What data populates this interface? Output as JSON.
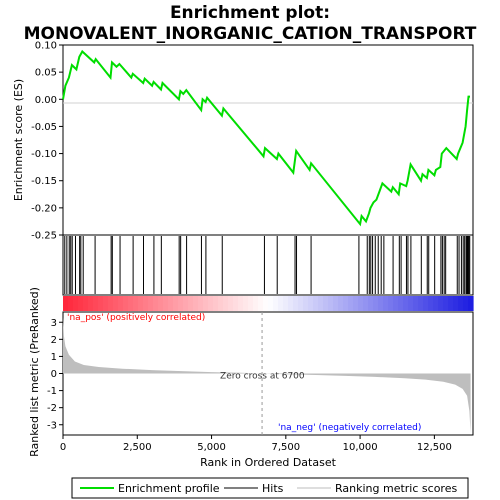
{
  "chart_data": {
    "type": "line",
    "title_line1": "Enrichment plot:",
    "title_line2": "MONOVALENT_INORGANIC_CATION_TRANSPORT",
    "ylabel_top": "Enrichment score (ES)",
    "ylabel_bottom": "Ranked list metric (PreRanked)",
    "xlabel": "Rank in Ordered Dataset",
    "xlim": [
      0,
      13800
    ],
    "x_ticks": [
      "0",
      "2,500",
      "5,000",
      "7,500",
      "10,000",
      "12,500"
    ],
    "x_tick_values": [
      0,
      2500,
      5000,
      7500,
      10000,
      12500
    ],
    "es_ylim": [
      -0.25,
      0.1
    ],
    "es_ticks": [
      "0.10",
      "0.05",
      "0.00",
      "-0.05",
      "-0.10",
      "-0.15",
      "-0.20",
      "-0.25"
    ],
    "es_tick_values": [
      0.1,
      0.05,
      0.0,
      -0.05,
      -0.1,
      -0.15,
      -0.2,
      -0.25
    ],
    "metric_ylim": [
      -3.6,
      3.6
    ],
    "metric_ticks": [
      "3",
      "2",
      "1",
      "0",
      "-1",
      "-2",
      "-3"
    ],
    "metric_tick_values": [
      3,
      2,
      1,
      0,
      -1,
      -2,
      -3
    ],
    "zero_cross_label": "Zero cross at 6700",
    "zero_cross": 6700,
    "pos_label": "'na_pos' (positively correlated)",
    "neg_label": "'na_neg' (negatively correlated)",
    "series": [
      {
        "name": "Enrichment profile",
        "color": "#00dd00",
        "points": [
          [
            0,
            0.0
          ],
          [
            80,
            0.025
          ],
          [
            200,
            0.04
          ],
          [
            300,
            0.063
          ],
          [
            450,
            0.055
          ],
          [
            550,
            0.078
          ],
          [
            650,
            0.088
          ],
          [
            1050,
            0.068
          ],
          [
            1100,
            0.074
          ],
          [
            1600,
            0.04
          ],
          [
            1650,
            0.068
          ],
          [
            1800,
            0.06
          ],
          [
            1900,
            0.065
          ],
          [
            2300,
            0.04
          ],
          [
            2350,
            0.047
          ],
          [
            2700,
            0.03
          ],
          [
            2750,
            0.038
          ],
          [
            3000,
            0.025
          ],
          [
            3050,
            0.032
          ],
          [
            3300,
            0.018
          ],
          [
            3350,
            0.03
          ],
          [
            3900,
            0.0
          ],
          [
            3950,
            0.015
          ],
          [
            4050,
            0.01
          ],
          [
            4150,
            0.017
          ],
          [
            4650,
            -0.02
          ],
          [
            4700,
            0.0
          ],
          [
            4800,
            -0.005
          ],
          [
            4850,
            0.003
          ],
          [
            5350,
            -0.03
          ],
          [
            5400,
            -0.017
          ],
          [
            6750,
            -0.105
          ],
          [
            6800,
            -0.09
          ],
          [
            7200,
            -0.11
          ],
          [
            7250,
            -0.1
          ],
          [
            7750,
            -0.135
          ],
          [
            7850,
            -0.095
          ],
          [
            8300,
            -0.13
          ],
          [
            8350,
            -0.118
          ],
          [
            10000,
            -0.23
          ],
          [
            10050,
            -0.215
          ],
          [
            10200,
            -0.225
          ],
          [
            10300,
            -0.21
          ],
          [
            10350,
            -0.2
          ],
          [
            10450,
            -0.19
          ],
          [
            10550,
            -0.185
          ],
          [
            10650,
            -0.17
          ],
          [
            10750,
            -0.155
          ],
          [
            11050,
            -0.17
          ],
          [
            11100,
            -0.162
          ],
          [
            11300,
            -0.175
          ],
          [
            11350,
            -0.155
          ],
          [
            11550,
            -0.16
          ],
          [
            11600,
            -0.15
          ],
          [
            11700,
            -0.12
          ],
          [
            12050,
            -0.15
          ],
          [
            12100,
            -0.138
          ],
          [
            12250,
            -0.145
          ],
          [
            12300,
            -0.13
          ],
          [
            12500,
            -0.14
          ],
          [
            12550,
            -0.13
          ],
          [
            12700,
            -0.125
          ],
          [
            12750,
            -0.1
          ],
          [
            12900,
            -0.09
          ],
          [
            13250,
            -0.11
          ],
          [
            13300,
            -0.1
          ],
          [
            13450,
            -0.08
          ],
          [
            13550,
            -0.05
          ],
          [
            13600,
            -0.02
          ],
          [
            13650,
            0.005
          ],
          [
            13700,
            0.005
          ]
        ]
      }
    ],
    "hit_positions": [
      60,
      130,
      210,
      260,
      310,
      420,
      560,
      600,
      680,
      1080,
      1620,
      1660,
      1920,
      2360,
      2710,
      3060,
      3310,
      3910,
      3960,
      4160,
      4660,
      4810,
      5360,
      6780,
      7210,
      7810,
      7860,
      8350,
      9960,
      10240,
      10310,
      10360,
      10420,
      10510,
      10610,
      10710,
      10800,
      11110,
      11320,
      11380,
      11560,
      11610,
      11710,
      12060,
      12260,
      12310,
      12510,
      12720,
      12770,
      12830,
      12880,
      13270,
      13330,
      13410,
      13470,
      13520,
      13570,
      13600,
      13630,
      13660,
      13690
    ],
    "metric_curve": [
      [
        0,
        3.3
      ],
      [
        30,
        2.2
      ],
      [
        80,
        1.6
      ],
      [
        200,
        1.1
      ],
      [
        400,
        0.7
      ],
      [
        700,
        0.5
      ],
      [
        1200,
        0.38
      ],
      [
        2000,
        0.28
      ],
      [
        3000,
        0.2
      ],
      [
        4000,
        0.14
      ],
      [
        5000,
        0.08
      ],
      [
        6000,
        0.04
      ],
      [
        6700,
        0.0
      ],
      [
        7500,
        -0.04
      ],
      [
        8500,
        -0.09
      ],
      [
        9500,
        -0.14
      ],
      [
        10500,
        -0.2
      ],
      [
        11500,
        -0.28
      ],
      [
        12200,
        -0.36
      ],
      [
        12800,
        -0.48
      ],
      [
        13200,
        -0.65
      ],
      [
        13450,
        -0.9
      ],
      [
        13600,
        -1.3
      ],
      [
        13680,
        -2.2
      ],
      [
        13720,
        -3.5
      ]
    ],
    "legend": [
      "Enrichment profile",
      "Hits",
      "Ranking metric scores"
    ],
    "colors": {
      "es_line": "#00dd00",
      "hits": "#000000",
      "metric_fill": "#bebebe",
      "pos_label": "#ff0000",
      "neg_label": "#0000ff"
    }
  }
}
